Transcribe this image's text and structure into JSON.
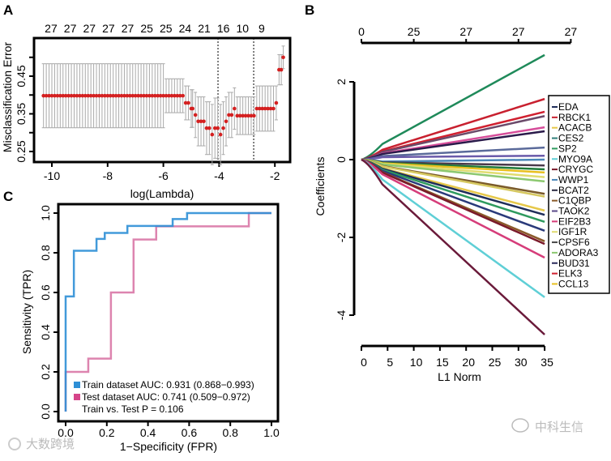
{
  "chart_data": [
    {
      "panel": "A",
      "type": "scatter",
      "title": "",
      "xlabel": "log(Lambda)",
      "ylabel": "Misclassification Error",
      "xlim": [
        -10.65,
        -1.4
      ],
      "ylim": [
        0.2,
        0.53
      ],
      "xticks": [
        "-10",
        "-8",
        "-6",
        "-4",
        "-2"
      ],
      "xtick_values": [
        -10,
        -8,
        -6,
        -4,
        -2
      ],
      "yticks": [
        "0.25",
        "0.35",
        "0.45"
      ],
      "ytick_values": [
        0.25,
        0.35,
        0.45
      ],
      "top_labels": [
        "27",
        "27",
        "27",
        "27",
        "27",
        "25",
        "25",
        "24",
        "21",
        "16",
        "10",
        "9"
      ],
      "top_label_start": -10.03,
      "top_label_step": 0.687,
      "vlines": [
        -4.04,
        -2.76
      ],
      "point_color": "#d42020",
      "errorbar_color": "#aaaaaa",
      "flat_segment": {
        "from": -10.3,
        "to": -5.3,
        "step": 0.1,
        "y": 0.398,
        "err_until_-6": 0.085,
        "err_after": 0.045
      },
      "points": [
        [
          -5.2,
          0.379,
          0.045
        ],
        [
          -5.1,
          0.379,
          0.045
        ],
        [
          -5.0,
          0.364,
          0.05
        ],
        [
          -4.95,
          0.364,
          0.05
        ],
        [
          -4.85,
          0.347,
          0.06
        ],
        [
          -4.75,
          0.33,
          0.065
        ],
        [
          -4.65,
          0.33,
          0.065
        ],
        [
          -4.55,
          0.33,
          0.065
        ],
        [
          -4.45,
          0.312,
          0.07
        ],
        [
          -4.35,
          0.312,
          0.07
        ],
        [
          -4.25,
          0.295,
          0.08
        ],
        [
          -4.15,
          0.312,
          0.08
        ],
        [
          -4.05,
          0.312,
          0.08
        ],
        [
          -3.95,
          0.295,
          0.08
        ],
        [
          -3.85,
          0.312,
          0.07
        ],
        [
          -3.75,
          0.33,
          0.065
        ],
        [
          -3.65,
          0.347,
          0.06
        ],
        [
          -3.55,
          0.347,
          0.06
        ],
        [
          -3.45,
          0.364,
          0.055
        ],
        [
          -3.35,
          0.345,
          0.05
        ],
        [
          -3.25,
          0.345,
          0.05
        ],
        [
          -3.15,
          0.345,
          0.05
        ],
        [
          -3.05,
          0.345,
          0.05
        ],
        [
          -2.95,
          0.345,
          0.05
        ],
        [
          -2.85,
          0.345,
          0.05
        ],
        [
          -2.75,
          0.345,
          0.05
        ],
        [
          -2.65,
          0.364,
          0.06
        ],
        [
          -2.55,
          0.364,
          0.06
        ],
        [
          -2.45,
          0.364,
          0.06
        ],
        [
          -2.35,
          0.364,
          0.06
        ],
        [
          -2.25,
          0.364,
          0.06
        ],
        [
          -2.15,
          0.364,
          0.06
        ],
        [
          -2.05,
          0.364,
          0.06
        ],
        [
          -1.95,
          0.379,
          0.045
        ],
        [
          -1.85,
          0.467,
          0.04
        ],
        [
          -1.77,
          0.467,
          0.04
        ],
        [
          -1.7,
          0.5,
          0.03
        ]
      ]
    },
    {
      "panel": "B",
      "type": "line",
      "xlabel": "L1 Norm",
      "ylabel": "Coefficients",
      "xlim": [
        0,
        35
      ],
      "ylim": [
        -4,
        2
      ],
      "xticks": [
        "0",
        "5",
        "10",
        "15",
        "20",
        "25",
        "30",
        "35"
      ],
      "xtick_values": [
        0,
        5,
        10,
        15,
        20,
        25,
        30,
        35
      ],
      "yticks": [
        "2",
        "0",
        "-2",
        "-4"
      ],
      "ytick_values": [
        2,
        0,
        -2,
        -4
      ],
      "top_axis_values": [
        0,
        10,
        20,
        30,
        40
      ],
      "top_labels": [
        "0",
        "25",
        "27",
        "27",
        "27"
      ],
      "legend": [
        {
          "name": "EDA",
          "color": "#1f2d5a"
        },
        {
          "name": "RBCK1",
          "color": "#c8202f"
        },
        {
          "name": "ACACB",
          "color": "#e6c84a"
        },
        {
          "name": "CES2",
          "color": "#2f7f7a"
        },
        {
          "name": "SP2",
          "color": "#2e9a5e"
        },
        {
          "name": "MYO9A",
          "color": "#5fcfd6"
        },
        {
          "name": "CRYGC",
          "color": "#7a1a2a"
        },
        {
          "name": "WWP1",
          "color": "#4a86b8"
        },
        {
          "name": "BCAT2",
          "color": "#2a2a40"
        },
        {
          "name": "C1QBP",
          "color": "#8a5a2a"
        },
        {
          "name": "TAOK2",
          "color": "#5a4a8a"
        },
        {
          "name": "EIF2B3",
          "color": "#d63d7a"
        },
        {
          "name": "IGF1R",
          "color": "#e0dc70"
        },
        {
          "name": "CPSF6",
          "color": "#4a4a4a"
        },
        {
          "name": "ADORA3",
          "color": "#8cc870"
        },
        {
          "name": "BUD31",
          "color": "#2a2a5a"
        },
        {
          "name": "ELK3",
          "color": "#d02030"
        },
        {
          "name": "CCL13",
          "color": "#e8c020"
        }
      ],
      "series_end_values": [
        {
          "end": 2.69,
          "color": "#1f8a5a"
        },
        {
          "end": 1.56,
          "color": "#c8202f"
        },
        {
          "end": 1.23,
          "color": "#d02030"
        },
        {
          "end": 1.12,
          "color": "#6a4a6a"
        },
        {
          "end": 0.83,
          "color": "#d64d9a"
        },
        {
          "end": 0.73,
          "color": "#2a1a4a"
        },
        {
          "end": 0.31,
          "color": "#5a6a9a"
        },
        {
          "end": 0.1,
          "color": "#6a5aaa"
        },
        {
          "end": 0.0,
          "color": "#4a86b8"
        },
        {
          "end": -0.15,
          "color": "#4a3a4a"
        },
        {
          "end": -0.25,
          "color": "#1f7a3a"
        },
        {
          "end": -0.33,
          "color": "#e8c020"
        },
        {
          "end": -0.45,
          "color": "#e0dc70"
        },
        {
          "end": -0.56,
          "color": "#8cc870"
        },
        {
          "end": -0.88,
          "color": "#7a5a2a"
        },
        {
          "end": -0.95,
          "color": "#d6c860"
        },
        {
          "end": -1.31,
          "color": "#e6c84a"
        },
        {
          "end": -1.42,
          "color": "#1f2d5a"
        },
        {
          "end": -1.6,
          "color": "#2e9a5e"
        },
        {
          "end": -1.83,
          "color": "#2a3a7a"
        },
        {
          "end": -2.1,
          "color": "#8a5a2a"
        },
        {
          "end": -2.17,
          "color": "#7a1a2a"
        },
        {
          "end": -2.52,
          "color": "#d63d7a"
        },
        {
          "end": -3.54,
          "color": "#5fcfd6"
        },
        {
          "end": -4.5,
          "color": "#6a1a3a"
        }
      ]
    },
    {
      "panel": "C",
      "type": "line",
      "xlabel": "1−Specificity (FPR)",
      "ylabel": "Sensitivity (TPR)",
      "xlim": [
        0,
        1
      ],
      "ylim": [
        0,
        1
      ],
      "xticks": [
        "0.0",
        "0.2",
        "0.4",
        "0.6",
        "0.8",
        "1.0"
      ],
      "xtick_values": [
        0,
        0.2,
        0.4,
        0.6,
        0.8,
        1.0
      ],
      "yticks": [
        "0.0",
        "0.2",
        "0.4",
        "0.6",
        "0.8",
        "1.0"
      ],
      "ytick_values": [
        0,
        0.2,
        0.4,
        0.6,
        0.8,
        1.0
      ],
      "series": [
        {
          "name": "Train dataset AUC: 0.931 (0.868−0.993)",
          "color": "#2e8fd6",
          "legend_color": "#2e8fd6",
          "points": [
            [
              0,
              0
            ],
            [
              0,
              0.58
            ],
            [
              0.04,
              0.58
            ],
            [
              0.04,
              0.81
            ],
            [
              0.15,
              0.81
            ],
            [
              0.15,
              0.87
            ],
            [
              0.19,
              0.87
            ],
            [
              0.19,
              0.9
            ],
            [
              0.3,
              0.9
            ],
            [
              0.3,
              0.935
            ],
            [
              0.52,
              0.935
            ],
            [
              0.52,
              0.97
            ],
            [
              0.59,
              0.97
            ],
            [
              0.59,
              1
            ],
            [
              1,
              1
            ]
          ]
        },
        {
          "name": "Test dataset AUC: 0.741 (0.509−0.972)",
          "color": "#d977a6",
          "legend_color": "#d6458a",
          "points": [
            [
              0,
              0
            ],
            [
              0,
              0.2
            ],
            [
              0.11,
              0.2
            ],
            [
              0.11,
              0.267
            ],
            [
              0.22,
              0.267
            ],
            [
              0.22,
              0.6
            ],
            [
              0.33,
              0.6
            ],
            [
              0.33,
              0.867
            ],
            [
              0.44,
              0.867
            ],
            [
              0.44,
              0.933
            ],
            [
              0.89,
              0.933
            ],
            [
              0.89,
              1
            ],
            [
              1,
              1
            ]
          ]
        }
      ],
      "annotation": "Train vs. Test P = 0.106"
    }
  ],
  "panel_labels": {
    "a": "A",
    "b": "B",
    "c": "C"
  },
  "watermarks": {
    "left": "大数跨境",
    "right": "中科生信"
  }
}
